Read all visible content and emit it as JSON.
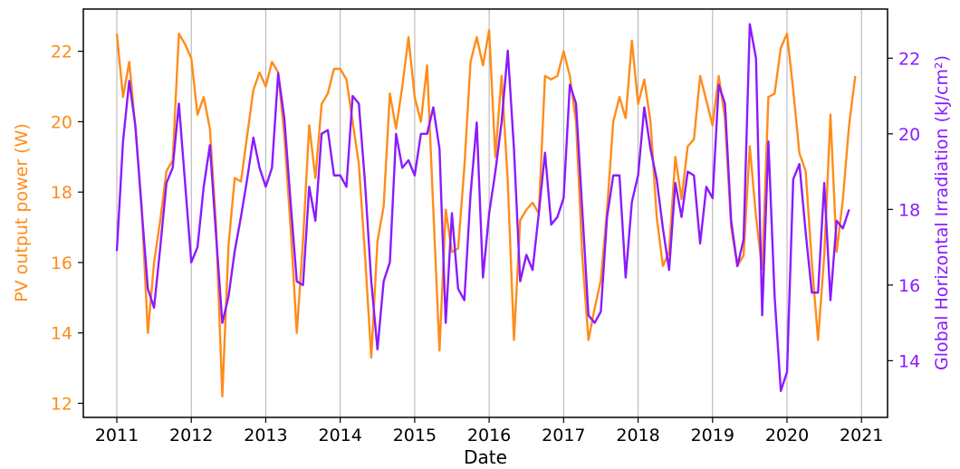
{
  "chart_data": {
    "type": "line",
    "xlabel": "Date",
    "ylabel_left": "PV output power (W)",
    "ylabel_right": "Global Horizontal Irradiation (kJ/cm²)",
    "x_ticks": [
      "2011",
      "2012",
      "2013",
      "2014",
      "2015",
      "2016",
      "2017",
      "2018",
      "2019",
      "2020",
      "2021"
    ],
    "y_left_ticks": [
      "12",
      "14",
      "16",
      "18",
      "20",
      "22"
    ],
    "y_right_ticks": [
      "14",
      "16",
      "18",
      "20",
      "22"
    ],
    "xlim": [
      2010.55,
      2021.35
    ],
    "ylim_left": [
      11.6,
      23.2
    ],
    "ylim_right": [
      12.5,
      23.3
    ],
    "grid": "vertical",
    "colors": {
      "pv": "#ff8c1a",
      "ghi": "#8b1aff"
    },
    "series": [
      {
        "key": "pv",
        "axis": "left",
        "start_year": 2011,
        "step_months": 1,
        "values": [
          22.5,
          20.7,
          21.7,
          19.8,
          17.6,
          14.0,
          16.0,
          17.2,
          18.6,
          18.9,
          22.5,
          22.2,
          21.8,
          20.2,
          20.7,
          19.8,
          17.0,
          12.2,
          16.5,
          18.4,
          18.3,
          19.6,
          20.9,
          21.4,
          21.0,
          21.7,
          21.4,
          19.6,
          17.0,
          14.0,
          16.6,
          19.9,
          18.4,
          20.5,
          20.8,
          21.5,
          21.5,
          21.2,
          20.0,
          18.8,
          16.2,
          13.3,
          16.6,
          17.6,
          20.8,
          19.8,
          21.0,
          22.4,
          20.7,
          20.0,
          21.6,
          17.5,
          13.5,
          17.5,
          16.3,
          16.4,
          18.7,
          21.7,
          22.4,
          21.6,
          22.6,
          19.0,
          21.3,
          18.3,
          13.8,
          17.2,
          17.5,
          17.7,
          17.4,
          21.3,
          21.2,
          21.3,
          22.0,
          21.3,
          20.0,
          16.2,
          13.8,
          14.7,
          15.5,
          17.5,
          20.0,
          20.7,
          20.1,
          22.3,
          20.5,
          21.2,
          20.0,
          17.3,
          15.9,
          16.3,
          19.0,
          17.8,
          19.3,
          19.5,
          21.3,
          20.6,
          19.9,
          21.3,
          20.1,
          17.0,
          15.9,
          16.2,
          19.3,
          17.3,
          15.8,
          20.7,
          20.8,
          22.1,
          22.5,
          20.9,
          19.1,
          18.6,
          16.0,
          13.8,
          16.2,
          20.2,
          16.3,
          17.8,
          19.9,
          21.3
        ]
      },
      {
        "key": "ghi",
        "axis": "right",
        "start_year": 2011,
        "step_months": 1,
        "values": [
          16.9,
          19.8,
          21.4,
          20.2,
          18.0,
          15.9,
          15.4,
          17.0,
          18.7,
          19.1,
          20.8,
          18.7,
          16.6,
          17.0,
          18.6,
          19.7,
          17.3,
          15.0,
          15.7,
          16.9,
          17.8,
          18.8,
          19.9,
          19.1,
          18.6,
          19.1,
          21.6,
          20.4,
          18.2,
          16.1,
          16.0,
          18.6,
          17.7,
          20.0,
          20.1,
          18.9,
          18.9,
          18.6,
          21.0,
          20.8,
          18.7,
          16.1,
          14.3,
          16.1,
          16.6,
          20.0,
          19.1,
          19.3,
          18.9,
          20.0,
          20.0,
          20.7,
          19.6,
          15.0,
          17.9,
          15.9,
          15.6,
          18.4,
          20.3,
          16.2,
          17.9,
          19.0,
          20.3,
          22.2,
          19.6,
          16.1,
          16.8,
          16.4,
          17.9,
          19.5,
          17.6,
          17.8,
          18.3,
          21.3,
          20.8,
          18.0,
          15.2,
          15.0,
          15.3,
          17.8,
          18.9,
          18.9,
          16.2,
          18.2,
          18.9,
          20.7,
          19.6,
          18.8,
          17.5,
          16.4,
          18.7,
          17.8,
          19.0,
          18.9,
          17.1,
          18.6,
          18.3,
          21.3,
          20.8,
          17.7,
          16.5,
          17.2,
          22.9,
          22.0,
          15.2,
          19.8,
          15.7,
          13.2,
          13.7,
          18.8,
          19.2,
          17.4,
          15.8,
          15.8,
          18.7,
          15.6,
          17.7,
          17.5,
          18.0
        ]
      }
    ]
  }
}
